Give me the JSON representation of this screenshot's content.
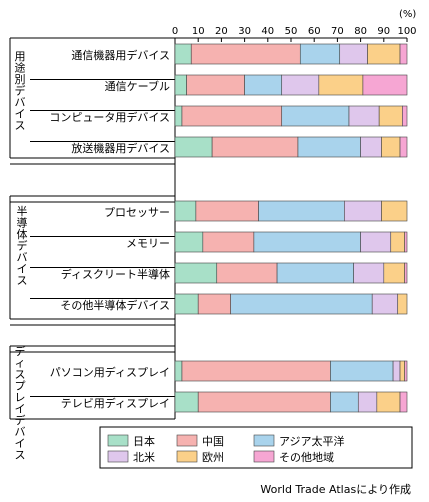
{
  "chart_data": {
    "type": "stacked-bar-horizontal",
    "unit_label": "(%)",
    "xlim": [
      0,
      100
    ],
    "x_ticks": [
      0,
      10,
      20,
      30,
      40,
      50,
      60,
      70,
      80,
      90,
      100
    ],
    "colors": {
      "日本": "#a8e0c8",
      "中国": "#f6b2b0",
      "アジア太平洋": "#a9d3ec",
      "北米": "#dfc7ec",
      "欧州": "#fbd089",
      "その他地域": "#f6a6d3"
    },
    "series_order": [
      "日本",
      "中国",
      "アジア太平洋",
      "北米",
      "欧州",
      "その他地域"
    ],
    "groups": [
      {
        "label": "用途別デバイス",
        "rows": [
          {
            "label": "通信機器用デバイス",
            "values": [
              7,
              47,
              17,
              12,
              14,
              3
            ]
          },
          {
            "label": "通信ケーブル",
            "values": [
              5,
              25,
              16,
              16,
              19,
              19
            ]
          },
          {
            "label": "コンピュータ用デバイス",
            "values": [
              3,
              43,
              29,
              13,
              10,
              2
            ]
          },
          {
            "label": "放送機器用デバイス",
            "values": [
              16,
              37,
              27,
              9,
              8,
              3
            ]
          }
        ]
      },
      {
        "label": "半導体デバイス",
        "rows": [
          {
            "label": "プロセッサー",
            "values": [
              9,
              27,
              37,
              16,
              11,
              0
            ]
          },
          {
            "label": "メモリー",
            "values": [
              12,
              22,
              46,
              13,
              6,
              1
            ]
          },
          {
            "label": "ディスクリート半導体",
            "values": [
              18,
              26,
              33,
              13,
              9,
              1
            ]
          },
          {
            "label": "その他半導体デバイス",
            "values": [
              10,
              14,
              61,
              11,
              4,
              0
            ]
          }
        ]
      },
      {
        "label": "ディスプレイデバイス",
        "rows": [
          {
            "label": "パソコン用ディスプレイ",
            "values": [
              3,
              64,
              27,
              3,
              2,
              1
            ]
          },
          {
            "label": "テレビ用ディスプレイ",
            "values": [
              10,
              57,
              12,
              8,
              10,
              3
            ]
          }
        ]
      }
    ],
    "legend": [
      "日本",
      "中国",
      "アジア太平洋",
      "北米",
      "欧州",
      "その他地域"
    ]
  },
  "source_note": "World Trade Atlasにより作成"
}
